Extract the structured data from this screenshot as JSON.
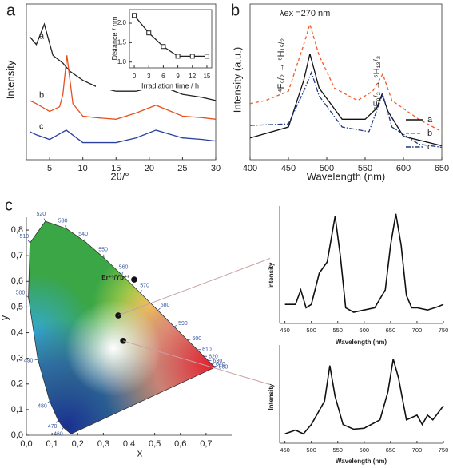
{
  "chart_data": [
    {
      "type": "line",
      "panel_label": "a",
      "xlabel": "2θ/°",
      "ylabel": "Intensity",
      "xlim": [
        1.5,
        30
      ],
      "ylim": [
        0,
        100
      ],
      "xticks": [
        5,
        10,
        15,
        20,
        25,
        30
      ],
      "series": [
        {
          "name": "a",
          "color": "#222222",
          "x": [
            2,
            3,
            4.2,
            5.5,
            7,
            8,
            10,
            12,
            15,
            18,
            20,
            22,
            25,
            28,
            30
          ],
          "values": [
            79,
            74,
            87,
            67,
            62,
            57,
            51,
            47,
            44,
            44,
            46,
            47,
            42,
            40,
            38
          ]
        },
        {
          "name": "b",
          "color": "#e8501e",
          "x": [
            2,
            3,
            5,
            6.5,
            7,
            7.6,
            8.5,
            10,
            12,
            15,
            18,
            21,
            25,
            28,
            30
          ],
          "values": [
            38,
            36,
            31,
            34,
            42,
            67,
            36,
            28,
            27,
            26,
            30,
            35,
            28,
            27,
            26
          ]
        },
        {
          "name": "c",
          "color": "#2a3f9e",
          "x": [
            2,
            3,
            5,
            7.5,
            10,
            12,
            15,
            18,
            21,
            25,
            28,
            30
          ],
          "values": [
            18,
            16,
            13,
            19,
            11,
            11,
            11,
            14,
            19,
            14,
            13,
            12
          ]
        }
      ]
    },
    {
      "type": "line",
      "xlabel": "Irradiation time / h",
      "ylabel": "Distance / nm",
      "xlim": [
        -1,
        16
      ],
      "ylim": [
        0.85,
        2.35
      ],
      "xticks": [
        0,
        3,
        6,
        9,
        12,
        15
      ],
      "yticks": [
        {
          "value": 1,
          "label": "1.0"
        },
        {
          "value": 1.5,
          "label": "1.5"
        },
        {
          "value": 2,
          "label": "2.0"
        }
      ],
      "markers": true,
      "series": [
        {
          "color": "#222222",
          "x": [
            0,
            3,
            6,
            9,
            12,
            15
          ],
          "values": [
            2.2,
            1.75,
            1.4,
            1.15,
            1.15,
            1.15
          ]
        }
      ]
    },
    {
      "type": "line",
      "panel_label": "b",
      "xlabel": "Wavelength (nm)",
      "ylabel": "Intensity (a.u.)",
      "xlim": [
        400,
        650
      ],
      "ylim": [
        0,
        100
      ],
      "xticks": [
        400,
        450,
        500,
        550,
        600,
        650
      ],
      "legend": "right",
      "annotations": [
        "λex =270 nm",
        "⁴F₉/₂ → ⁶H₁₅/₂",
        "⁴F₉/₂ → ⁶H₁₃/₂"
      ],
      "series": [
        {
          "name": "a",
          "color": "#111111",
          "dash": "solid",
          "x": [
            400,
            450,
            470,
            478,
            490,
            520,
            550,
            565,
            572,
            580,
            600,
            650
          ],
          "values": [
            14,
            21,
            51,
            68,
            46,
            26,
            26,
            33,
            42,
            31,
            15,
            9
          ]
        },
        {
          "name": "b",
          "color": "#f05a28",
          "dash": "dash",
          "x": [
            400,
            420,
            450,
            470,
            478,
            490,
            510,
            540,
            560,
            573,
            585,
            620,
            650
          ],
          "values": [
            36,
            38,
            44,
            74,
            87,
            67,
            46,
            38,
            44,
            55,
            38,
            26,
            18
          ]
        },
        {
          "name": "c",
          "color": "#1f3a8a",
          "dash": "dashdot",
          "x": [
            400,
            450,
            470,
            480,
            490,
            520,
            555,
            573,
            585,
            620,
            650
          ],
          "values": [
            22,
            23,
            44,
            56,
            41,
            21,
            18,
            42,
            21,
            10,
            8
          ]
        }
      ]
    },
    {
      "type": "cie",
      "panel_label": "c",
      "xlabel": "x",
      "ylabel": "y",
      "xlim": [
        0,
        0.8
      ],
      "ylim": [
        0,
        0.85
      ],
      "xticks": [
        {
          "value": 0,
          "label": "0,0"
        },
        {
          "value": 0.1,
          "label": "0,1"
        },
        {
          "value": 0.2,
          "label": "0,2"
        },
        {
          "value": 0.3,
          "label": "0,3"
        },
        {
          "value": 0.4,
          "label": "0,4"
        },
        {
          "value": 0.5,
          "label": "0,5"
        },
        {
          "value": 0.6,
          "label": "0,6"
        },
        {
          "value": 0.7,
          "label": "0,7"
        }
      ],
      "yticks": [
        {
          "value": 0,
          "label": "0,0"
        },
        {
          "value": 0.1,
          "label": "0,1"
        },
        {
          "value": 0.2,
          "label": "0,2"
        },
        {
          "value": 0.3,
          "label": "0,3"
        },
        {
          "value": 0.4,
          "label": "0,4"
        },
        {
          "value": 0.5,
          "label": "0,5"
        },
        {
          "value": 0.6,
          "label": "0,6"
        },
        {
          "value": 0.7,
          "label": "0,7"
        },
        {
          "value": 0.8,
          "label": "0,8"
        }
      ],
      "locus": {
        "wavelengths": [
          null,
          460,
          470,
          480,
          490,
          500,
          510,
          520,
          530,
          540,
          550,
          560,
          570,
          580,
          590,
          600,
          610,
          620,
          630,
          640,
          660,
          null
        ],
        "x": [
          0.174,
          0.144,
          0.124,
          0.091,
          0.045,
          0.008,
          0.014,
          0.074,
          0.155,
          0.23,
          0.302,
          0.373,
          0.444,
          0.512,
          0.575,
          0.627,
          0.666,
          0.691,
          0.708,
          0.719,
          0.73,
          0.735
        ],
        "y": [
          0.005,
          0.03,
          0.058,
          0.133,
          0.295,
          0.538,
          0.75,
          0.834,
          0.806,
          0.754,
          0.692,
          0.624,
          0.555,
          0.487,
          0.424,
          0.372,
          0.334,
          0.308,
          0.292,
          0.281,
          0.27,
          0.265
        ]
      },
      "series": [
        {
          "color": "#111111",
          "x": [
            0.42,
            0.358,
            0.377
          ],
          "values": [
            0.607,
            0.467,
            0.368
          ],
          "labels": [
            "Er⁺³/Yb⁺³",
            null,
            null
          ]
        }
      ]
    },
    {
      "type": "line",
      "xlabel": "Wavelength (nm)",
      "ylabel": "Intensity",
      "xlim": [
        440,
        750
      ],
      "ylim": [
        0,
        105
      ],
      "xticks": [
        450,
        500,
        550,
        600,
        650,
        700,
        750
      ],
      "series": [
        {
          "color": "#111111",
          "x": [
            450,
            470,
            480,
            485,
            490,
            500,
            515,
            530,
            545,
            555,
            565,
            580,
            600,
            620,
            640,
            650,
            660,
            670,
            680,
            690,
            700,
            720,
            740,
            750
          ],
          "values": [
            17,
            17,
            30,
            22,
            14,
            17,
            45,
            55,
            96,
            60,
            14,
            10,
            12,
            14,
            30,
            70,
            98,
            70,
            25,
            14,
            14,
            12,
            15,
            17
          ]
        }
      ]
    },
    {
      "type": "line",
      "xlabel": "Wavelength (nm)",
      "ylabel": "Intensity",
      "xlim": [
        440,
        750
      ],
      "ylim": [
        0,
        105
      ],
      "xticks": [
        450,
        500,
        550,
        600,
        650,
        700,
        750
      ],
      "series": [
        {
          "color": "#111111",
          "x": [
            450,
            470,
            485,
            500,
            515,
            525,
            535,
            545,
            560,
            580,
            600,
            630,
            645,
            655,
            665,
            680,
            700,
            710,
            720,
            730,
            750
          ],
          "values": [
            10,
            14,
            10,
            20,
            35,
            45,
            83,
            50,
            20,
            15,
            16,
            25,
            55,
            90,
            70,
            25,
            30,
            20,
            30,
            25,
            40
          ]
        }
      ]
    }
  ]
}
